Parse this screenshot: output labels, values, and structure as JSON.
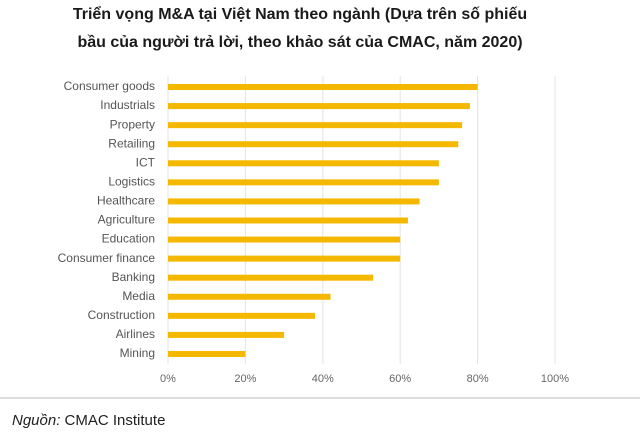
{
  "chart_data": {
    "type": "barh",
    "title": [
      "Triển vọng M&A tại Việt Nam theo ngành (Dựa trên số phiếu",
      "bầu của người trả lời, theo khảo sát của CMAC, năm 2020)"
    ],
    "categories": [
      "Consumer goods",
      "Industrials",
      "Property",
      "Retailing",
      "ICT",
      "Logistics",
      "Healthcare",
      "Agriculture",
      "Education",
      "Consumer finance",
      "Banking",
      "Media",
      "Construction",
      "Airlines",
      "Mining"
    ],
    "values": [
      80,
      78,
      76,
      75,
      70,
      70,
      65,
      62,
      60,
      60,
      53,
      42,
      38,
      30,
      20
    ],
    "color": "#f5b800",
    "xlim": [
      0,
      100
    ],
    "xticks": [
      {
        "value": 0,
        "label": "0%"
      },
      {
        "value": 20,
        "label": "20%"
      },
      {
        "value": 40,
        "label": "40%"
      },
      {
        "value": 60,
        "label": "60%"
      },
      {
        "value": 80,
        "label": "80%"
      },
      {
        "value": 100,
        "label": "100%"
      }
    ],
    "grid": true
  },
  "source": {
    "label": "Nguồn:",
    "text": "CMAC Institute"
  }
}
